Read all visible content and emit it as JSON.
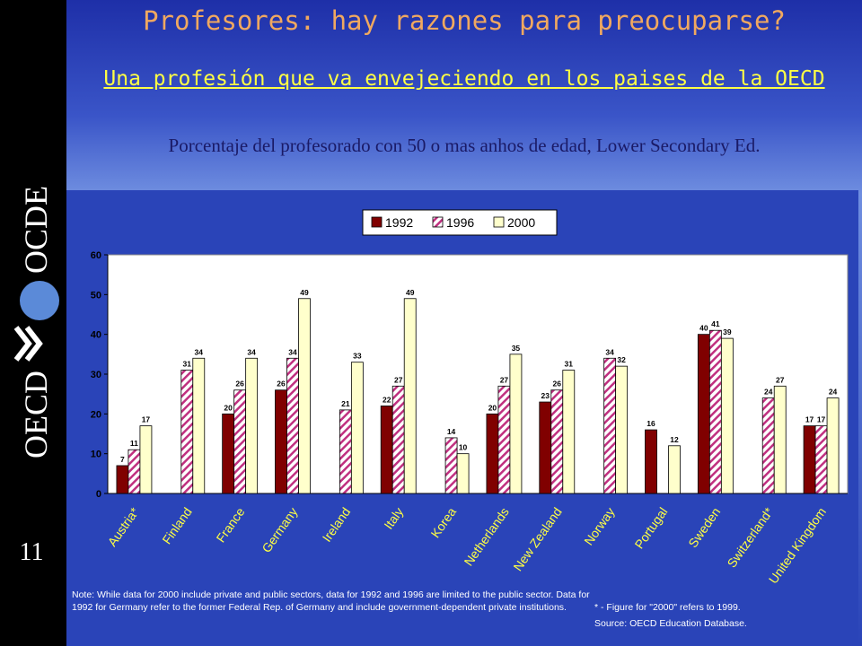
{
  "slide": {
    "number": "11",
    "title": "Profesores: hay razones para preocuparse?",
    "subtitle": "Una profesión que va envejeciendo en los paises de la OECD",
    "caption": "Porcentaje del profesorado con 50 o mas anhos de edad, Lower Secondary Ed.",
    "logo_top_text": "OCDE",
    "logo_bottom_text": "OECD"
  },
  "notes": {
    "left": "Note: While data for 2000 include private and public sectors, data for 1992 and 1996 are limited to the public sector. Data for 1992 for Germany refer to the former Federal Rep. of Germany and include government-dependent private institutions.",
    "right_line1": "* - Figure for \"2000\" refers to 1999.",
    "right_line2": "Source: OECD Education Database."
  },
  "colors": {
    "series_1992": "#800000",
    "series_1996_stripe": "#c03080",
    "series_2000": "#ffffcc",
    "plot_bg": "#ffffff",
    "axis": "#000000"
  },
  "chart_data": {
    "type": "bar",
    "categories": [
      "Austria*",
      "Finland",
      "France",
      "Germany",
      "Ireland",
      "Italy",
      "Korea",
      "Netherlands",
      "New Zealand",
      "Norway",
      "Portugal",
      "Sweden",
      "Switzerland*",
      "United Kingdom"
    ],
    "series": [
      {
        "name": "1992",
        "values": [
          7,
          null,
          20,
          26,
          null,
          22,
          null,
          20,
          23,
          null,
          16,
          40,
          null,
          17
        ]
      },
      {
        "name": "1996",
        "values": [
          11,
          31,
          26,
          34,
          21,
          27,
          14,
          27,
          26,
          34,
          null,
          41,
          24,
          17
        ]
      },
      {
        "name": "2000",
        "values": [
          17,
          34,
          34,
          49,
          33,
          49,
          10,
          35,
          31,
          32,
          12,
          39,
          27,
          24
        ]
      }
    ],
    "ylim": [
      0,
      60
    ],
    "yticks": [
      "0",
      "10",
      "20",
      "30",
      "40",
      "50",
      "60"
    ],
    "legend_position": "top-center",
    "grid": false
  }
}
